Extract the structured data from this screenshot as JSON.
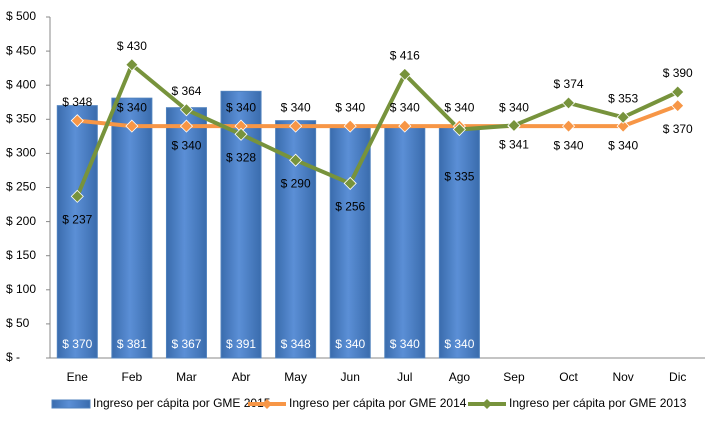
{
  "chart_data": {
    "type": "bar_line",
    "categories": [
      "Ene",
      "Feb",
      "Mar",
      "Abr",
      "May",
      "Jun",
      "Jul",
      "Ago",
      "Sep",
      "Oct",
      "Nov",
      "Dic"
    ],
    "series": [
      {
        "name": "Ingreso per cápita por GME 2015",
        "type": "bar",
        "color": "#4f81bd",
        "values": [
          370,
          381,
          367,
          391,
          348,
          340,
          340,
          340,
          null,
          null,
          null,
          null
        ],
        "value_labels": [
          "$ 370",
          "$ 381",
          "$ 367",
          "$ 391",
          "$ 348",
          "$ 340",
          "$ 340",
          "$ 340",
          null,
          null,
          null,
          null
        ]
      },
      {
        "name": "Ingreso per cápita por GME 2014",
        "type": "line",
        "color": "#f79646",
        "values": [
          348,
          340,
          340,
          340,
          340,
          340,
          340,
          340,
          340,
          340,
          340,
          370
        ],
        "value_labels": [
          "$ 348",
          "$ 340",
          "$ 340",
          "$ 340",
          "$ 340",
          "$ 340",
          "$ 340",
          "$ 340",
          "$ 340",
          "$ 340",
          "$ 340",
          "$ 370"
        ]
      },
      {
        "name": "Ingreso per cápita por GME 2013",
        "type": "line",
        "color": "#77933c",
        "values": [
          237,
          430,
          364,
          328,
          290,
          256,
          416,
          335,
          341,
          374,
          353,
          390
        ],
        "value_labels": [
          "$ 237",
          "$ 430",
          "$ 364",
          "$ 328",
          "$ 290",
          "$ 256",
          "$ 416",
          "$ 335",
          "$ 341",
          "$ 374",
          "$ 353",
          "$ 390"
        ]
      }
    ],
    "ylim": [
      0,
      500
    ],
    "yticks": [
      {
        "value": 0,
        "label": "$ -"
      },
      {
        "value": 50,
        "label": "$ 50"
      },
      {
        "value": 100,
        "label": "$ 100"
      },
      {
        "value": 150,
        "label": "$ 150"
      },
      {
        "value": 200,
        "label": "$ 200"
      },
      {
        "value": 250,
        "label": "$ 250"
      },
      {
        "value": 300,
        "label": "$ 300"
      },
      {
        "value": 350,
        "label": "$ 350"
      },
      {
        "value": 400,
        "label": "$ 400"
      },
      {
        "value": 450,
        "label": "$ 450"
      },
      {
        "value": 500,
        "label": "$ 500"
      }
    ],
    "legend": "bottom"
  }
}
